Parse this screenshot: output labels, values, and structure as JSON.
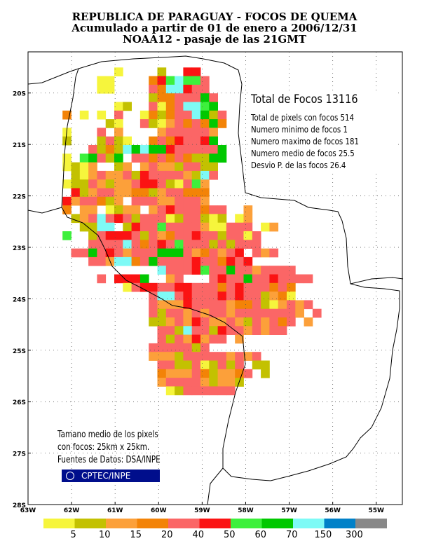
{
  "title": {
    "line1": "REPUBLICA DE PARAGUAY - FOCOS DE QUEMA",
    "line2": "Acumulado a partir de 01 de enero a 2006/12/31",
    "line3": "NOAA12 - pasaje de las 21GMT"
  },
  "stats": {
    "total": "Total de Focos 13116",
    "pixels": "Total de pixels con focos 514",
    "min": "Numero minimo de focos 1",
    "max": "Numero maximo de focos 181",
    "mean": "Numero medio de focos 25.5",
    "std": "Desvio P. de las focos 26.4"
  },
  "note": {
    "line1": "Tamano medio de los pixels",
    "line2": "con focos: 25km x 25km.",
    "line3": "Fuentes de Datos: DSA/INPE"
  },
  "logo": {
    "text": "CPTEC/INPE"
  },
  "axes": {
    "x_ticks": [
      "63W",
      "62W",
      "61W",
      "60W",
      "59W",
      "58W",
      "57W",
      "56W",
      "55W"
    ],
    "y_ticks": [
      "20S",
      "21S",
      "22S",
      "23S",
      "24S",
      "25S",
      "26S",
      "27S",
      "28S"
    ],
    "x_range": [
      -63,
      -54.4
    ],
    "y_range": [
      -28,
      -19.2
    ]
  },
  "legend": {
    "labels": [
      "5",
      "10",
      "15",
      "20",
      "40",
      "50",
      "60",
      "70",
      "150",
      "300"
    ],
    "colors": [
      "#f6f53c",
      "#c3c101",
      "#fca03a",
      "#f38307",
      "#fb6666",
      "#fb1313",
      "#3df03c",
      "#00c800",
      "#7efaf6",
      "#0181c8",
      "#888888"
    ]
  },
  "map_data": {
    "cell_colors": [
      "#ffffff",
      "#f6f53c",
      "#c3c101",
      "#fca03a",
      "#f38307",
      "#fb6666",
      "#fb1313",
      "#3df03c",
      "#00c800",
      "#7efaf6",
      "#0181c8"
    ],
    "rows": [
      "................................",
      "..........1....2..66...........",
      "........11....4679775...........",
      "........11....5499655...........",
      "..............24455585.........",
      "..........12..51459978.........",
      "....4.1.1.5..1424559825........",
      ".........21..5213545484........",
      "....1...5.3....3555553.........",
      "....2...2521..45465568.........",
      ".......5242989886555558.........",
      "....1.78528.55454542288.........",
      "....1213..23.353325522.........",
      ".....21353352655553295.........",
      "....12253233566521573..........",
      ".....6235533442355444..........",
      "....6355423.555335553...........",
      "....4.33.1233.356555455..3......",
      ".....235956525551255212.13......",
      "......2299.265575555311555.13....",
      "....7..25666525345565525515......",
      ".......55559545657555252555.......",
      ".....55856535558885345356.535.....",
      ".......5539945855556554656.........",
      "...............9555675585535555...",
      "........5.6668..35...565585565555...",
      "...........15665566555456555454.....",
      "..............59956555656552341.....",
      "..............5333655553445213535...",
      "..............525535355355555553.5..",
      "..............22353653353253545.3...",
      "...............552955265535355......",
      "...............52536355.3...........",
      "..............5555525.................",
      "..............3332555553535...........",
      "...............5522512525.22............",
      "...............43335423345.2..........",
      "...............3555532332..............",
      "................12555555.............."
    ]
  }
}
